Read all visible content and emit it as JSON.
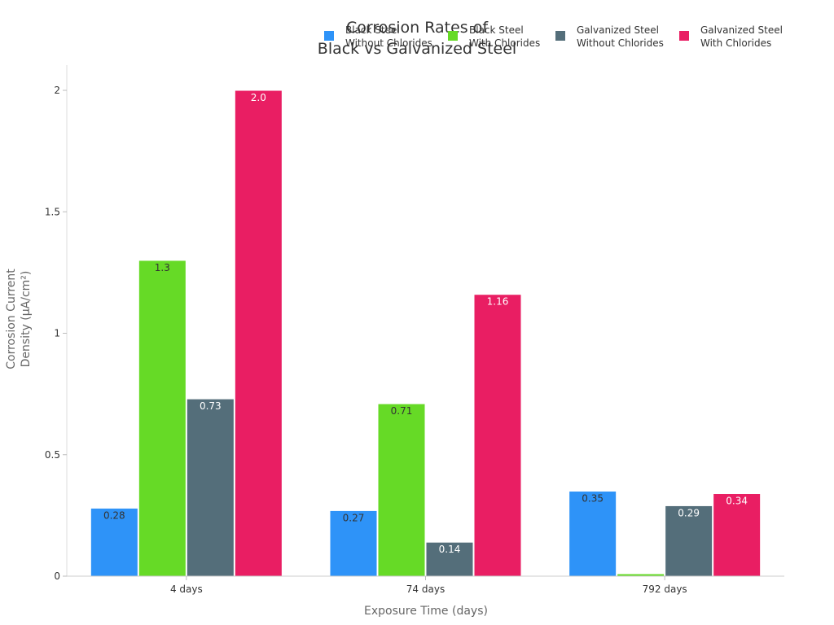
{
  "chart_data": {
    "type": "bar",
    "title_lines": [
      "Corrosion Rates of",
      "Black vs Galvanized Steel"
    ],
    "xlabel": "Exposure Time (days)",
    "ylabel_lines": [
      "Corrosion Current",
      "Density (µA/cm²)"
    ],
    "categories": [
      "4 days",
      "74 days",
      "792 days"
    ],
    "ylim": [
      0,
      2.1
    ],
    "yticks": [
      0,
      0.5,
      1,
      1.5,
      2
    ],
    "ytick_labels": [
      "0",
      "0.5",
      "1",
      "1.5",
      "2"
    ],
    "grid": false,
    "legend_position": "top-right",
    "series": [
      {
        "name_lines": [
          "Black Steel",
          "Without Chlorides"
        ],
        "color": "#2E93F8",
        "label_color": "#333333",
        "values": [
          0.28,
          0.27,
          0.35
        ],
        "labels": [
          "0.28",
          "0.27",
          "0.35"
        ]
      },
      {
        "name_lines": [
          "Black Steel",
          "With Chlorides"
        ],
        "color": "#66DA26",
        "label_color": "#333333",
        "values": [
          1.3,
          0.71,
          0.01
        ],
        "labels": [
          "1.3",
          "0.71",
          ""
        ]
      },
      {
        "name_lines": [
          "Galvanized Steel",
          "Without Chlorides"
        ],
        "color": "#546E7A",
        "label_color": "#ffffff",
        "values": [
          0.73,
          0.14,
          0.29
        ],
        "labels": [
          "0.73",
          "0.14",
          "0.29"
        ]
      },
      {
        "name_lines": [
          "Galvanized Steel",
          "With Chlorides"
        ],
        "color": "#E91E63",
        "label_color": "#ffffff",
        "values": [
          2.0,
          1.16,
          0.34
        ],
        "labels": [
          "2.0",
          "1.16",
          "0.34"
        ]
      }
    ]
  }
}
